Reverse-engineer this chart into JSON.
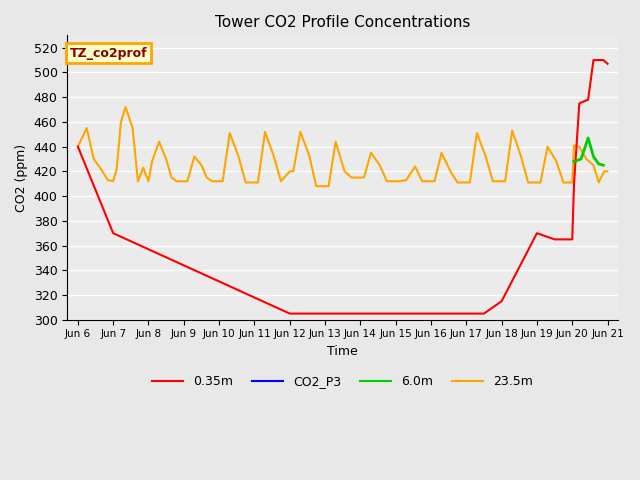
{
  "title": "Tower CO2 Profile Concentrations",
  "xlabel": "Time",
  "ylabel": "CO2 (ppm)",
  "ylim": [
    300,
    530
  ],
  "yticks": [
    300,
    320,
    340,
    360,
    380,
    400,
    420,
    440,
    460,
    480,
    500,
    520
  ],
  "xtick_labels": [
    "Jun 6",
    "Jun 7",
    "Jun 8",
    "Jun 9",
    "Jun 10",
    "Jun 11",
    "Jun 12",
    "Jun 13",
    "Jun 14",
    "Jun 15",
    "Jun 16",
    "Jun 17",
    "Jun 18",
    "Jun 19",
    "Jun 20",
    "Jun 21"
  ],
  "annotation_text": "TZ_co2prof",
  "annotation_color": "#8B0000",
  "annotation_bg": "#FFFFCC",
  "annotation_border": "#FFA500",
  "bg_color": "#E8E8E8",
  "grid_color": "#FFFFFF",
  "legend_colors": {
    "0.35m": "#FF0000",
    "CO2_P3": "#0000FF",
    "6.0m": "#00CC00",
    "23.5m": "#FFA500"
  },
  "red_x": [
    0,
    1,
    6,
    11.5,
    12,
    13,
    13.5,
    14.0,
    14.05,
    14.2,
    14.45,
    14.6,
    14.75,
    14.88,
    15.0
  ],
  "red_y": [
    440,
    370,
    305,
    305,
    315,
    370,
    365,
    365,
    410,
    475,
    478,
    510,
    510,
    510,
    507
  ],
  "green_x": [
    14.05,
    14.25,
    14.45,
    14.6,
    14.75,
    14.88
  ],
  "green_y": [
    428,
    430,
    447,
    432,
    426,
    425
  ],
  "orange_x": [
    0,
    0.25,
    0.45,
    0.65,
    0.85,
    1.0,
    1.1,
    1.22,
    1.35,
    1.55,
    1.7,
    1.85,
    2.0,
    2.1,
    2.3,
    2.5,
    2.65,
    2.8,
    3.0,
    3.1,
    3.3,
    3.5,
    3.65,
    3.8,
    4.0,
    4.1,
    4.3,
    4.55,
    4.75,
    5.0,
    5.1,
    5.3,
    5.55,
    5.75,
    6.0,
    6.1,
    6.3,
    6.55,
    6.75,
    7.0,
    7.1,
    7.3,
    7.55,
    7.75,
    8.0,
    8.1,
    8.3,
    8.55,
    8.75,
    9.0,
    9.1,
    9.3,
    9.55,
    9.75,
    10.0,
    10.1,
    10.3,
    10.55,
    10.75,
    11.0,
    11.1,
    11.3,
    11.55,
    11.75,
    12.0,
    12.1,
    12.3,
    12.55,
    12.75,
    13.0,
    13.1,
    13.3,
    13.55,
    13.75,
    14.0,
    14.05,
    14.2,
    14.4,
    14.6,
    14.75,
    14.9,
    15.0
  ],
  "orange_y": [
    440,
    455,
    430,
    422,
    413,
    412,
    422,
    460,
    472,
    455,
    412,
    423,
    412,
    428,
    444,
    430,
    415,
    412,
    412,
    412,
    432,
    425,
    415,
    412,
    412,
    412,
    451,
    432,
    411,
    411,
    411,
    452,
    432,
    412,
    420,
    420,
    452,
    433,
    408,
    408,
    408,
    444,
    420,
    415,
    415,
    415,
    435,
    425,
    412,
    412,
    412,
    413,
    424,
    412,
    412,
    412,
    435,
    420,
    411,
    411,
    411,
    451,
    432,
    412,
    412,
    412,
    453,
    432,
    411,
    411,
    411,
    440,
    428,
    411,
    411,
    441,
    440,
    430,
    425,
    411,
    420,
    420
  ]
}
